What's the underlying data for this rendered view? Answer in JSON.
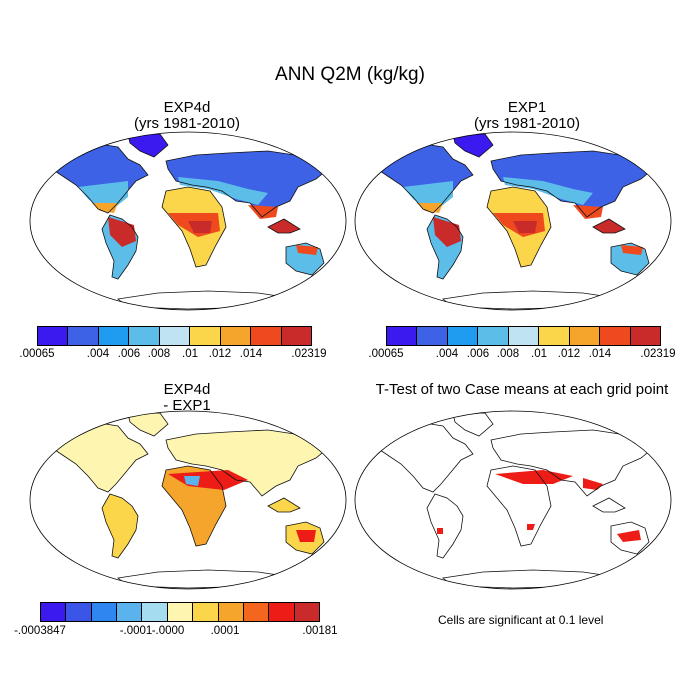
{
  "figure": {
    "title": "ANN Q2M (kg/kg)"
  },
  "panels": [
    {
      "id": "exp4d",
      "title_line1": "EXP4d",
      "title_line2": "(yrs 1981-2010)",
      "colorbar": {
        "colors": [
          "#3b1af0",
          "#3d62e6",
          "#1f9bf0",
          "#5cbde9",
          "#c0e3f2",
          "#fbd54a",
          "#f6a52c",
          "#ee4a1e",
          "#c92a2a"
        ],
        "tick_labels": [
          ".00065",
          ".004",
          ".006",
          ".008",
          ".01",
          ".012",
          ".014",
          ".02319"
        ]
      }
    },
    {
      "id": "exp1",
      "title_line1": "EXP1",
      "title_line2": "(yrs 1981-2010)",
      "colorbar": {
        "colors": [
          "#3b1af0",
          "#3d62e6",
          "#1f9bf0",
          "#5cbde9",
          "#c0e3f2",
          "#fbd54a",
          "#f6a52c",
          "#ee4a1e",
          "#c92a2a"
        ],
        "tick_labels": [
          ".00065",
          ".004",
          ".006",
          ".008",
          ".01",
          ".012",
          ".014",
          ".02319"
        ]
      }
    },
    {
      "id": "diff",
      "title_line1": "EXP4d",
      "title_line2": "- EXP1",
      "colorbar": {
        "colors": [
          "#3b1af0",
          "#3a55e8",
          "#2f86f0",
          "#5ab3ec",
          "#a5dcf0",
          "#fdf5b0",
          "#fbd54a",
          "#f6a52c",
          "#f3661e",
          "#ee1c16",
          "#c92a2a"
        ],
        "tick_labels": [
          "-.0003847",
          "-.0001",
          "-.0000",
          ".0001",
          ".00181"
        ]
      }
    },
    {
      "id": "ttest",
      "title_line1": "T-Test of two Case means at each grid point",
      "note": "Cells are significant at 0.1 level",
      "significant_color": "#ee1c16"
    }
  ]
}
